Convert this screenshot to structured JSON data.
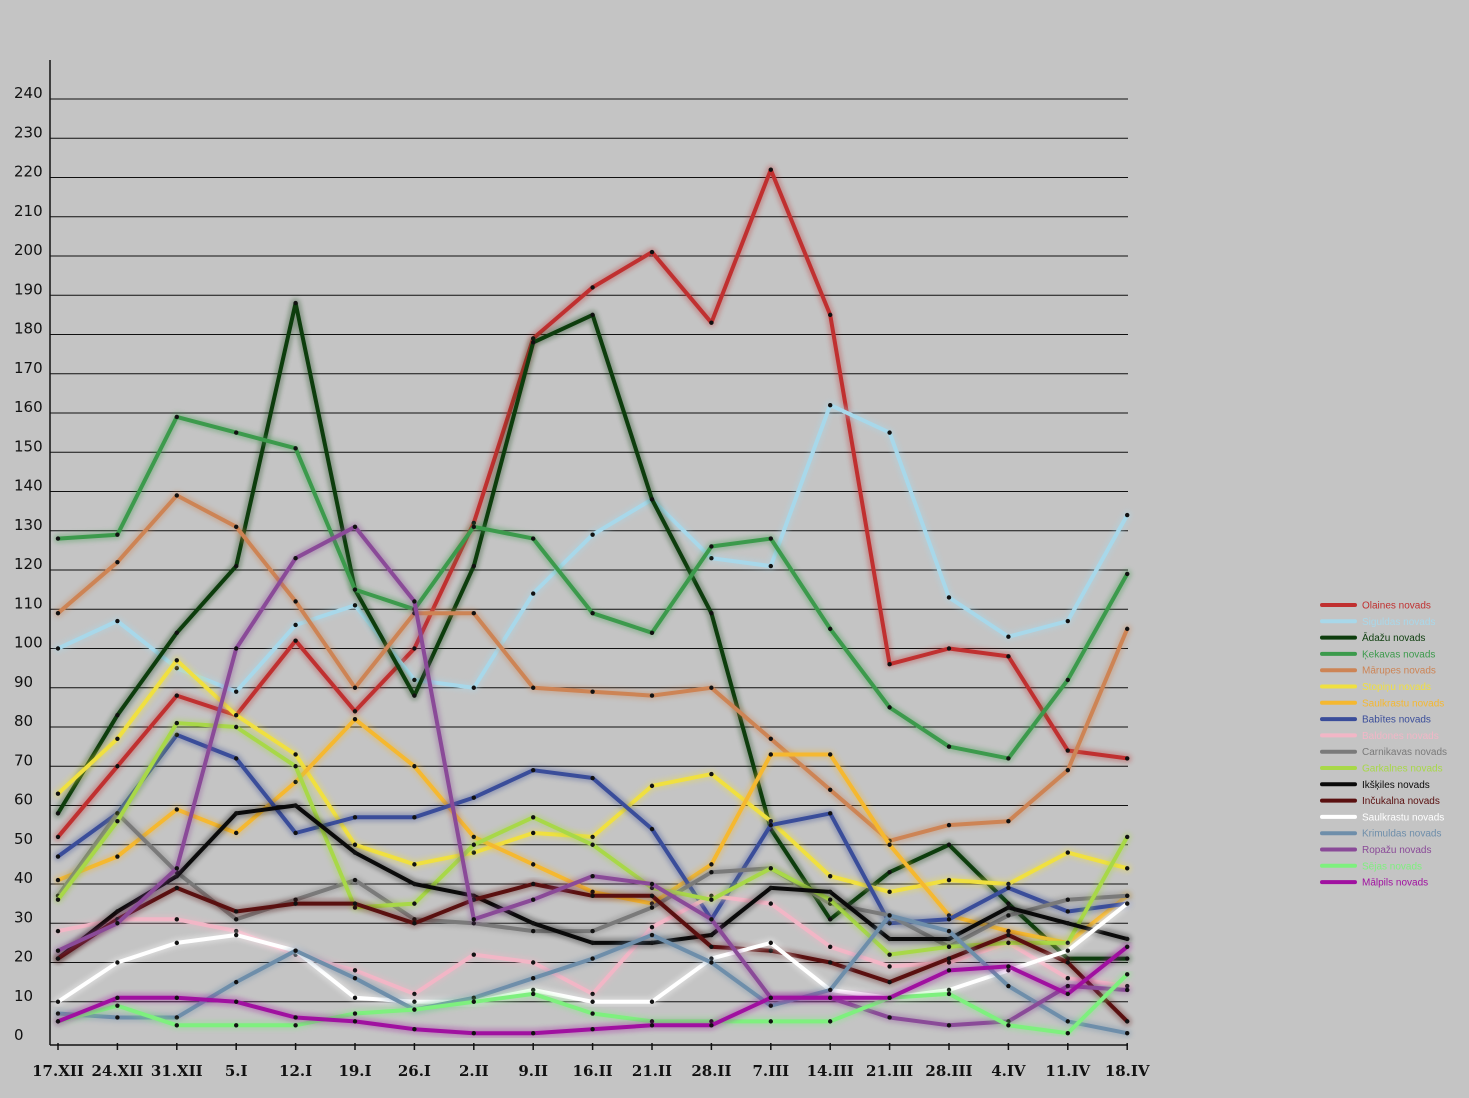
{
  "chart_data": {
    "type": "line",
    "title": "",
    "xlabel": "",
    "ylabel": "",
    "ylim": [
      0,
      250
    ],
    "y_ticks": [
      0,
      10,
      20,
      30,
      40,
      50,
      60,
      70,
      80,
      90,
      100,
      110,
      120,
      130,
      140,
      150,
      160,
      170,
      180,
      190,
      200,
      210,
      220,
      230,
      240
    ],
    "categories": [
      "17.XII",
      "24.XII",
      "31.XII",
      "5.I",
      "12.I",
      "19.I",
      "26.I",
      "2.II",
      "9.II",
      "16.II",
      "21.II",
      "28.II",
      "7.III",
      "14.III",
      "21.III",
      "28.III",
      "4.IV",
      "11.IV",
      "18.IV"
    ],
    "grid": true,
    "legend_position": "right",
    "series": [
      {
        "name": "Olaines novads",
        "color": "#c03030",
        "values": [
          52,
          70,
          88,
          83,
          102,
          84,
          100,
          132,
          179,
          192,
          201,
          183,
          222,
          185,
          96,
          100,
          98,
          74,
          72
        ]
      },
      {
        "name": "Siguldas novads",
        "color": "#a8d8ea",
        "values": [
          100,
          107,
          95,
          89,
          106,
          111,
          92,
          90,
          114,
          129,
          138,
          123,
          121,
          162,
          155,
          113,
          103,
          107,
          134
        ]
      },
      {
        "name": "Ādažu novads",
        "color": "#0d3d0d",
        "values": [
          58,
          83,
          104,
          121,
          188,
          115,
          88,
          121,
          178,
          185,
          138,
          109,
          54,
          31,
          43,
          50,
          35,
          21,
          21
        ]
      },
      {
        "name": "Ķekavas novads",
        "color": "#3c9a4c",
        "values": [
          128,
          129,
          159,
          155,
          151,
          115,
          110,
          131,
          128,
          109,
          104,
          126,
          128,
          105,
          85,
          75,
          72,
          92,
          119
        ]
      },
      {
        "name": "Mārupes novads",
        "color": "#cd8455",
        "values": [
          109,
          122,
          139,
          131,
          112,
          90,
          109,
          109,
          90,
          89,
          88,
          90,
          77,
          64,
          51,
          55,
          56,
          69,
          105
        ]
      },
      {
        "name": "Stopiņu novads",
        "color": "#f0e040",
        "values": [
          63,
          77,
          97,
          83,
          73,
          50,
          45,
          48,
          53,
          52,
          65,
          68,
          56,
          42,
          38,
          41,
          40,
          48,
          44
        ]
      },
      {
        "name": "Saulkrastu novads",
        "color": "#f5b830",
        "values": [
          41,
          47,
          59,
          53,
          66,
          82,
          70,
          52,
          45,
          38,
          35,
          45,
          73,
          73,
          50,
          32,
          28,
          25,
          37
        ]
      },
      {
        "name": "Babītes novads",
        "color": "#3a4d9a",
        "values": [
          47,
          58,
          78,
          72,
          53,
          57,
          57,
          62,
          69,
          67,
          54,
          31,
          55,
          58,
          30,
          31,
          39,
          33,
          35
        ]
      },
      {
        "name": "Baldones novads",
        "color": "#f2b6c6",
        "values": [
          28,
          31,
          31,
          28,
          22,
          18,
          12,
          22,
          20,
          12,
          29,
          37,
          35,
          24,
          19,
          20,
          25,
          16,
          14
        ]
      },
      {
        "name": "Carnikavas novads",
        "color": "#7a7a7a",
        "values": [
          37,
          58,
          43,
          31,
          36,
          41,
          31,
          30,
          28,
          28,
          34,
          43,
          44,
          35,
          32,
          24,
          32,
          36,
          37
        ]
      },
      {
        "name": "Garkalnes novads",
        "color": "#a8d848",
        "values": [
          36,
          56,
          81,
          80,
          70,
          34,
          35,
          50,
          57,
          50,
          39,
          36,
          44,
          36,
          22,
          24,
          25,
          25,
          52
        ]
      },
      {
        "name": "Ikšķiles novads",
        "color": "#0a0a0a",
        "values": [
          21,
          33,
          42,
          58,
          60,
          48,
          40,
          37,
          30,
          25,
          25,
          27,
          39,
          38,
          26,
          26,
          34,
          30,
          26
        ]
      },
      {
        "name": "Inčukalna novads",
        "color": "#5a1010",
        "values": [
          21,
          31,
          39,
          33,
          35,
          35,
          30,
          36,
          40,
          37,
          37,
          24,
          23,
          20,
          15,
          21,
          27,
          20,
          5
        ]
      },
      {
        "name": "Saulkrastu novads",
        "color": "#ffffff",
        "values": [
          10,
          20,
          25,
          27,
          23,
          11,
          10,
          10,
          13,
          10,
          10,
          21,
          25,
          13,
          11,
          13,
          18,
          23,
          35
        ]
      },
      {
        "name": "Krimuldas novads",
        "color": "#6e8eaa",
        "values": [
          7,
          6,
          6,
          15,
          23,
          16,
          8,
          11,
          16,
          21,
          27,
          20,
          9,
          13,
          32,
          28,
          14,
          5,
          2
        ]
      },
      {
        "name": "Ropažu novads",
        "color": "#8a4a98",
        "values": [
          23,
          30,
          44,
          100,
          123,
          131,
          112,
          31,
          36,
          42,
          40,
          31,
          11,
          11,
          6,
          4,
          5,
          14,
          13
        ]
      },
      {
        "name": "Sējas novads",
        "color": "#7ef07e",
        "values": [
          5,
          9,
          4,
          4,
          4,
          7,
          8,
          10,
          12,
          7,
          5,
          5,
          5,
          5,
          11,
          12,
          4,
          2,
          17
        ]
      },
      {
        "name": "Mālpils novads",
        "color": "#a010a0",
        "values": [
          5,
          11,
          11,
          10,
          6,
          5,
          3,
          2,
          2,
          3,
          4,
          4,
          11,
          11,
          11,
          18,
          19,
          12,
          24
        ]
      }
    ]
  }
}
